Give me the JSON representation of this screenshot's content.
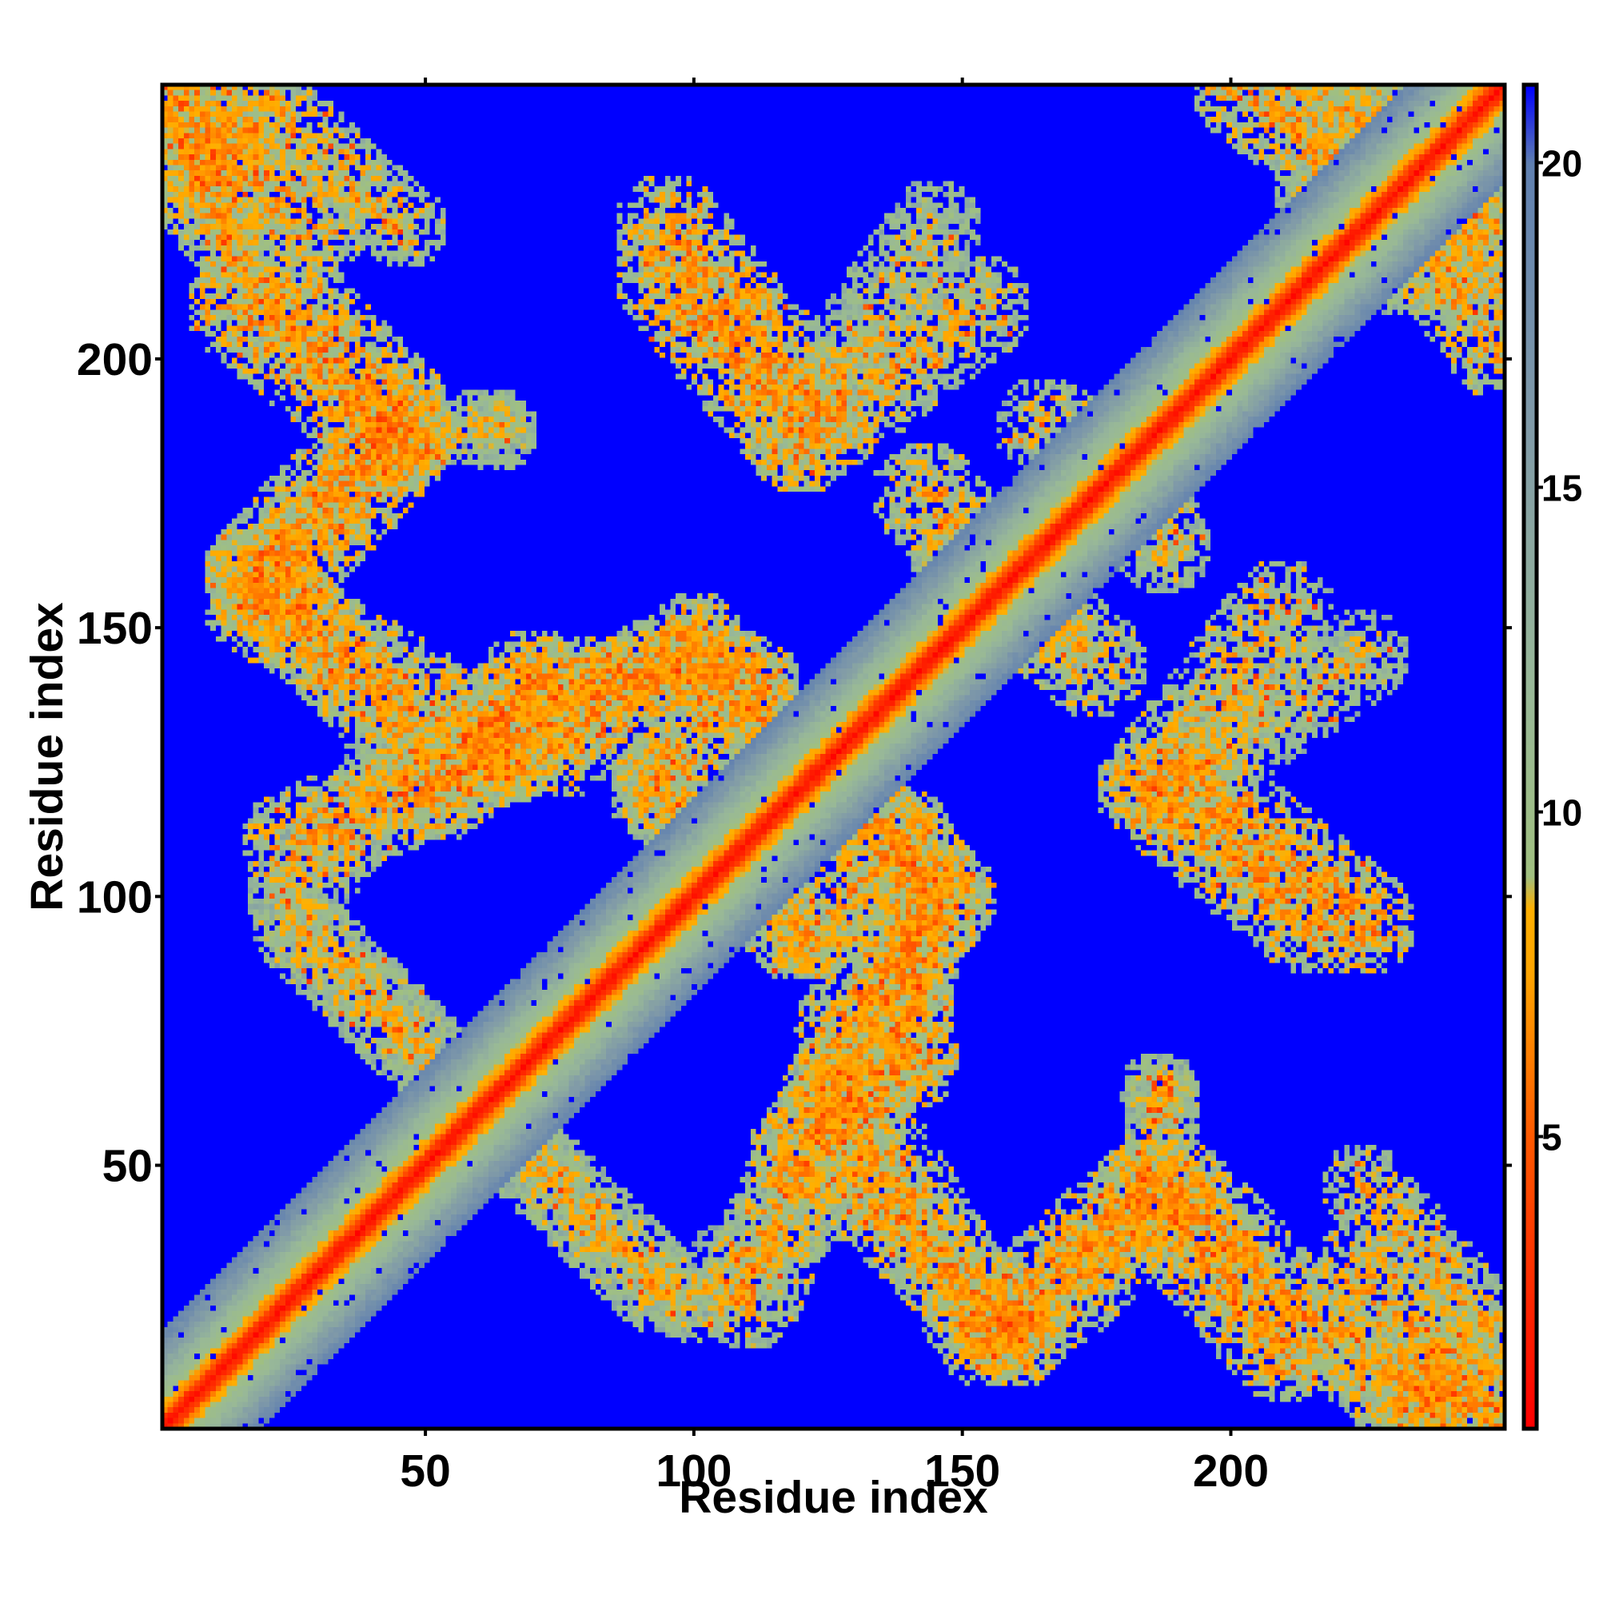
{
  "chart_data": {
    "type": "heatmap",
    "title": "",
    "xlabel": "Residue index",
    "ylabel": "Residue index",
    "n_residues": 251,
    "xlim": [
      1,
      251
    ],
    "ylim": [
      1,
      251
    ],
    "x_ticks": [
      50,
      100,
      150,
      200
    ],
    "y_ticks": [
      50,
      100,
      150,
      200
    ],
    "x_tick_labels": [
      "50",
      "100",
      "150",
      "200"
    ],
    "y_tick_labels": [
      "50",
      "100",
      "150",
      "200"
    ],
    "colorbar": {
      "range": [
        0.5,
        21.2
      ],
      "ticks": [
        5,
        10,
        15,
        20
      ],
      "tick_labels": [
        "5",
        "10",
        "15",
        "20"
      ],
      "colors": [
        {
          "value": 0.5,
          "color": "#ff0000"
        },
        {
          "value": 5,
          "color": "#ff5a00"
        },
        {
          "value": 7.5,
          "color": "#ffa500"
        },
        {
          "value": 8.5,
          "color": "#ffb000"
        },
        {
          "value": 9,
          "color": "#a0c080"
        },
        {
          "value": 12,
          "color": "#98b898"
        },
        {
          "value": 16,
          "color": "#809aa8"
        },
        {
          "value": 20,
          "color": "#6080b0"
        },
        {
          "value": 21.2,
          "color": "#0000ff"
        }
      ],
      "background_color": "#0000ff"
    },
    "contact_bands": [
      {
        "start": [
          1,
          251
        ],
        "end": [
          27,
          225
        ],
        "width": 12,
        "mean": 11
      },
      {
        "start": [
          20,
          248
        ],
        "end": [
          46,
          225
        ],
        "width": 8,
        "mean": 11.5
      },
      {
        "start": [
          17,
          218
        ],
        "end": [
          45,
          190
        ],
        "width": 10,
        "mean": 11
      },
      {
        "start": [
          18,
          160
        ],
        "end": [
          45,
          190
        ],
        "width": 10,
        "mean": 11
      },
      {
        "start": [
          18,
          160
        ],
        "end": [
          45,
          132
        ],
        "width": 10,
        "mean": 11
      },
      {
        "start": [
          25,
          100
        ],
        "end": [
          45,
          125
        ],
        "width": 9,
        "mean": 12.5
      },
      {
        "start": [
          25,
          95
        ],
        "end": [
          58,
          62
        ],
        "width": 8,
        "mean": 12.5
      },
      {
        "start": [
          58,
          62
        ],
        "end": [
          92,
          28
        ],
        "width": 9,
        "mean": 12
      },
      {
        "start": [
          52,
          120
        ],
        "end": [
          70,
          140
        ],
        "width": 10,
        "mean": 10.5
      },
      {
        "start": [
          70,
          140
        ],
        "end": [
          105,
          142
        ],
        "width": 8,
        "mean": 10.5
      },
      {
        "start": [
          105,
          142
        ],
        "end": [
          125,
          120
        ],
        "width": 10,
        "mean": 10.5
      },
      {
        "start": [
          92,
          118
        ],
        "end": [
          122,
          92
        ],
        "width": 8,
        "mean": 11.5
      },
      {
        "start": [
          122,
          92
        ],
        "end": [
          140,
          112
        ],
        "width": 8,
        "mean": 11
      },
      {
        "start": [
          128,
          75
        ],
        "end": [
          147,
          100
        ],
        "width": 10,
        "mean": 10.5
      },
      {
        "start": [
          125,
          60
        ],
        "end": [
          147,
          100
        ],
        "width": 9,
        "mean": 12
      },
      {
        "start": [
          127,
          65
        ],
        "end": [
          110,
          25
        ],
        "width": 10,
        "mean": 11
      },
      {
        "start": [
          127,
          65
        ],
        "end": [
          155,
          18
        ],
        "width": 10,
        "mean": 11
      },
      {
        "start": [
          157,
          20
        ],
        "end": [
          185,
          45
        ],
        "width": 10,
        "mean": 10.5
      },
      {
        "start": [
          185,
          45
        ],
        "end": [
          210,
          15
        ],
        "width": 10,
        "mean": 10.5
      },
      {
        "start": [
          188,
          62
        ],
        "end": [
          185,
          45
        ],
        "width": 7,
        "mean": 12
      },
      {
        "start": [
          225,
          12
        ],
        "end": [
          245,
          5
        ],
        "width": 9,
        "mean": 11
      },
      {
        "start": [
          95,
          225
        ],
        "end": [
          122,
          192
        ],
        "width": 10,
        "mean": 10.5
      },
      {
        "start": [
          125,
          195
        ],
        "end": [
          145,
          225
        ],
        "width": 9,
        "mean": 12.5
      },
      {
        "start": [
          143,
          175
        ],
        "end": [
          165,
          150
        ],
        "width": 10,
        "mean": 11.5
      },
      {
        "start": [
          165,
          188
        ],
        "end": [
          185,
          180
        ],
        "width": 9,
        "mean": 12
      },
      {
        "start": [
          185,
          120
        ],
        "end": [
          215,
          95
        ],
        "width": 10,
        "mean": 10.5
      },
      {
        "start": [
          185,
          120
        ],
        "end": [
          210,
          153
        ],
        "width": 10,
        "mean": 11.5
      },
      {
        "start": [
          202,
          250
        ],
        "end": [
          232,
          228
        ],
        "width": 9,
        "mean": 11
      },
      {
        "start": [
          230,
          245
        ],
        "end": [
          251,
          215
        ],
        "width": 10,
        "mean": 11.5
      },
      {
        "start": [
          210,
          215
        ],
        "end": [
          240,
          250
        ],
        "width": 8,
        "mean": 12
      }
    ],
    "contact_blobs": [
      {
        "center": [
          8,
          242
        ],
        "radius": 16,
        "mean": 11
      },
      {
        "center": [
          236,
          8
        ],
        "radius": 14,
        "mean": 11
      },
      {
        "center": [
          230,
          232
        ],
        "radius": 22,
        "mean": 11.5
      },
      {
        "center": [
          63,
          187
        ],
        "radius": 8,
        "mean": 12.5
      },
      {
        "center": [
          64,
          126
        ],
        "radius": 8,
        "mean": 12.5
      },
      {
        "center": [
          126,
          62
        ],
        "radius": 9,
        "mean": 12.5
      },
      {
        "center": [
          187,
          64
        ],
        "radius": 7,
        "mean": 12.5
      }
    ]
  }
}
